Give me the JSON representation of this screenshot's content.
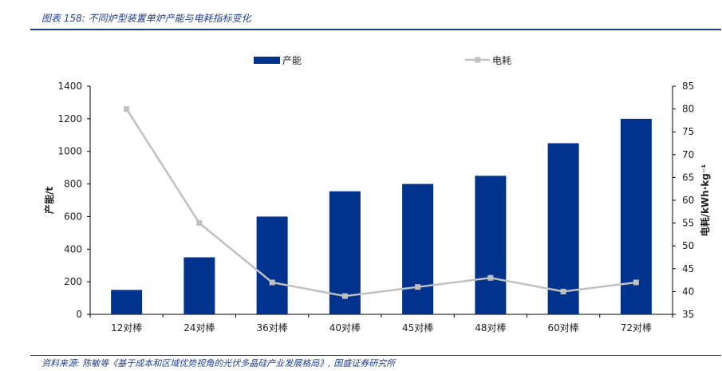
{
  "figure": {
    "title": "图表 158: 不同炉型装置单炉产能与电耗指标变化",
    "source": "资料来源: 陈敏等《基于成本和区域优势视角的光伏多晶硅产业发展格局》, 国盛证券研究所"
  },
  "colors": {
    "bar": "#00338D",
    "line": "#C0C0C0",
    "accent": "#1F3F8C"
  },
  "chart_data": {
    "type": "bar",
    "categories": [
      "12对棒",
      "24对棒",
      "36对棒",
      "40对棒",
      "45对棒",
      "48对棒",
      "60对棒",
      "72对棒"
    ],
    "series": [
      {
        "name": "产能",
        "type": "bar",
        "axis": "left",
        "values": [
          150,
          350,
          600,
          755,
          800,
          850,
          1050,
          1200
        ]
      },
      {
        "name": "电耗",
        "type": "line",
        "axis": "right",
        "values": [
          80,
          55,
          42,
          39,
          41,
          43,
          40,
          42
        ]
      }
    ],
    "ylabel": "产能/t",
    "y2label": "电耗/kWh·kg⁻¹",
    "ylim": [
      0,
      1400
    ],
    "y2lim": [
      35,
      85
    ],
    "yticks": [
      "0",
      "200",
      "400",
      "600",
      "800",
      "1000",
      "1200",
      "1400"
    ],
    "y2ticks": [
      "35",
      "40",
      "45",
      "50",
      "55",
      "60",
      "65",
      "70",
      "75",
      "80",
      "85"
    ],
    "legend_position": "top-center",
    "grid": false
  }
}
